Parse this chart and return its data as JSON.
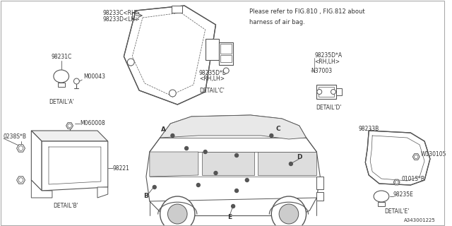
{
  "bg_color": "#ffffff",
  "line_color": "#555555",
  "text_color": "#333333",
  "title_note": "Please refer to FIG.810 , FIG.812 about\nharness of air bag.",
  "part_number_footer": "A343001225",
  "labels": {
    "detail_a": "DETAIL'A'",
    "detail_b": "DETAIL'B'",
    "detail_c": "DETAIL'C'",
    "detail_d": "DETAIL'D'",
    "detail_e": "DETAIL'E'",
    "p98233C": "98233C<RH>",
    "p98233D": "98233D<LH>",
    "p98231C": "98231C",
    "pM00043": "M00043",
    "p98235D_B": "98235D*B",
    "p98235D_B2": "<RH,LH>",
    "p98235D_A": "98235D*A",
    "p98235D_A2": "<RH,LH>",
    "pN37003": "N37003",
    "p0238S": "0238S*B",
    "pM060008": "M060008",
    "p98221": "98221",
    "p98233B": "98233B",
    "pW130105": "W130105",
    "p0101S": "0101S*B",
    "p98235E": "98235E",
    "point_A": "A",
    "point_B": "B",
    "point_C": "C",
    "point_D": "D",
    "point_E": "E"
  }
}
